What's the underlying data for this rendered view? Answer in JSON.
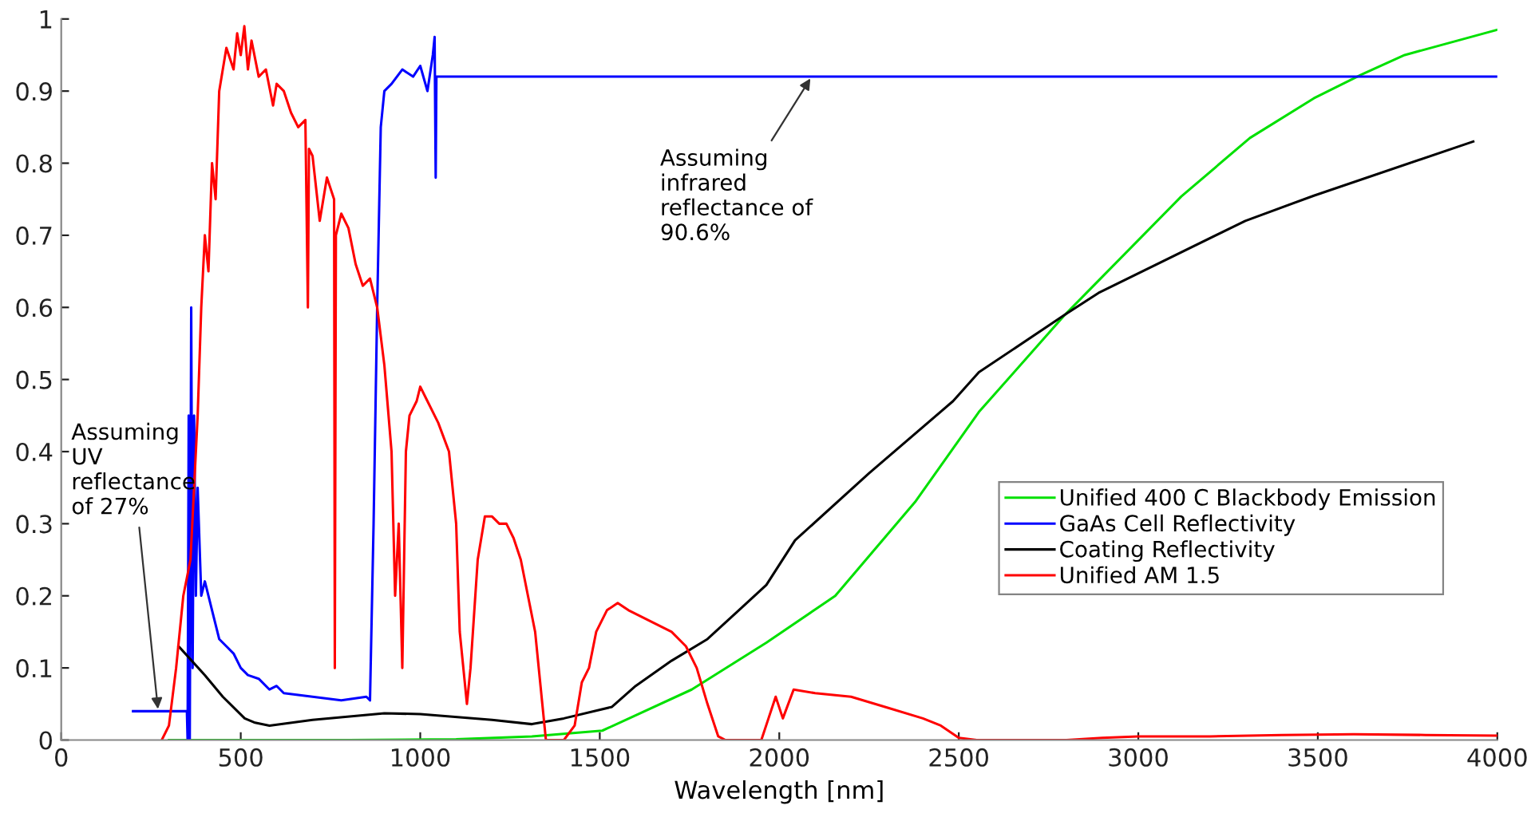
{
  "chart_data": {
    "type": "line",
    "xlabel": "Wavelength [nm]",
    "xlim": [
      0,
      4000
    ],
    "xticks": [
      0,
      500,
      1000,
      1500,
      2000,
      2500,
      3000,
      3500,
      4000
    ],
    "ylim": [
      0,
      1
    ],
    "yticks": [
      0,
      0.1,
      0.2,
      0.3,
      0.4,
      0.5,
      0.6,
      0.7,
      0.8,
      0.9,
      1
    ],
    "grid": false,
    "legend": "right",
    "marker": "none",
    "line_style": "solid",
    "annotations": [
      {
        "text": "Assuming\ninfrared\nreflectance of\n90.6%",
        "x": 2090,
        "y": 0.92
      },
      {
        "text": "Assuming\nUV\nreflectance\nof 27%",
        "x": 270,
        "y": 0.04
      }
    ],
    "series": [
      {
        "name": "Unified 400 C Blackbody Emission",
        "color": "#00e000",
        "x": [
          300,
          800,
          1100,
          1311,
          1507,
          1756,
          1964,
          2156,
          2378,
          2556,
          2796,
          3120,
          3311,
          3489,
          3622,
          3742,
          4000
        ],
        "values": [
          0,
          0,
          0.001,
          0.005,
          0.013,
          0.07,
          0.135,
          0.2,
          0.33,
          0.455,
          0.59,
          0.754,
          0.835,
          0.89,
          0.923,
          0.95,
          0.985
        ]
      },
      {
        "name": "GaAs Cell Reflectivity",
        "color": "#0000ff",
        "x": [
          200,
          350,
          352,
          355,
          358,
          362,
          366,
          370,
          375,
          380,
          390,
          400,
          420,
          440,
          460,
          480,
          500,
          520,
          550,
          580,
          600,
          620,
          700,
          780,
          850,
          860,
          870,
          880,
          890,
          900,
          920,
          950,
          980,
          1000,
          1020,
          1035,
          1040,
          1043,
          1045,
          4000
        ],
        "values": [
          0.04,
          0.04,
          0,
          0.45,
          0,
          0.6,
          0.1,
          0.45,
          0.2,
          0.35,
          0.2,
          0.22,
          0.18,
          0.14,
          0.13,
          0.12,
          0.1,
          0.09,
          0.085,
          0.07,
          0.075,
          0.065,
          0.06,
          0.055,
          0.06,
          0.055,
          0.3,
          0.6,
          0.85,
          0.9,
          0.91,
          0.93,
          0.92,
          0.935,
          0.9,
          0.95,
          0.975,
          0.78,
          0.92,
          0.92
        ]
      },
      {
        "name": "Coating Reflectivity",
        "color": "#000000",
        "x": [
          327,
          400,
          450,
          511,
          540,
          580,
          700,
          900,
          1000,
          1200,
          1311,
          1400,
          1534,
          1600,
          1700,
          1800,
          1964,
          2044,
          2250,
          2484,
          2556,
          2796,
          2889,
          3298,
          3489,
          3933
        ],
        "values": [
          0.13,
          0.09,
          0.06,
          0.03,
          0.024,
          0.02,
          0.028,
          0.037,
          0.036,
          0.028,
          0.022,
          0.03,
          0.046,
          0.075,
          0.11,
          0.14,
          0.215,
          0.277,
          0.37,
          0.47,
          0.51,
          0.59,
          0.62,
          0.72,
          0.755,
          0.83
        ]
      },
      {
        "name": "Unified AM 1.5",
        "color": "#ff0000",
        "x": [
          280,
          300,
          320,
          340,
          360,
          370,
          380,
          390,
          400,
          410,
          420,
          430,
          440,
          450,
          460,
          480,
          490,
          500,
          510,
          520,
          530,
          550,
          570,
          590,
          600,
          620,
          640,
          660,
          680,
          687,
          690,
          700,
          720,
          740,
          760,
          762,
          765,
          780,
          800,
          820,
          840,
          860,
          880,
          900,
          920,
          930,
          940,
          950,
          960,
          970,
          990,
          1000,
          1020,
          1050,
          1080,
          1100,
          1110,
          1130,
          1140,
          1160,
          1180,
          1200,
          1220,
          1240,
          1260,
          1280,
          1300,
          1320,
          1340,
          1350,
          1400,
          1430,
          1450,
          1470,
          1490,
          1520,
          1550,
          1580,
          1620,
          1660,
          1700,
          1740,
          1770,
          1800,
          1830,
          1850,
          1950,
          1970,
          1990,
          2010,
          2040,
          2100,
          2200,
          2300,
          2400,
          2450,
          2500,
          2550,
          2800,
          2900,
          3000,
          3200,
          3400,
          3600,
          3800,
          4000
        ],
        "values": [
          0,
          0.02,
          0.1,
          0.2,
          0.25,
          0.35,
          0.45,
          0.6,
          0.7,
          0.65,
          0.8,
          0.75,
          0.9,
          0.93,
          0.96,
          0.93,
          0.98,
          0.95,
          0.99,
          0.93,
          0.97,
          0.92,
          0.93,
          0.88,
          0.91,
          0.9,
          0.87,
          0.85,
          0.86,
          0.6,
          0.82,
          0.81,
          0.72,
          0.78,
          0.75,
          0.1,
          0.7,
          0.73,
          0.71,
          0.66,
          0.63,
          0.64,
          0.6,
          0.52,
          0.4,
          0.2,
          0.3,
          0.1,
          0.4,
          0.45,
          0.47,
          0.49,
          0.47,
          0.44,
          0.4,
          0.3,
          0.15,
          0.05,
          0.1,
          0.25,
          0.31,
          0.31,
          0.3,
          0.3,
          0.28,
          0.25,
          0.2,
          0.15,
          0.05,
          0,
          0,
          0.02,
          0.08,
          0.1,
          0.15,
          0.18,
          0.19,
          0.18,
          0.17,
          0.16,
          0.15,
          0.13,
          0.1,
          0.05,
          0.005,
          0,
          0,
          0.03,
          0.06,
          0.03,
          0.07,
          0.065,
          0.06,
          0.045,
          0.03,
          0.02,
          0.003,
          0,
          0,
          0.003,
          0.005,
          0.005,
          0.007,
          0.008,
          0.007,
          0.006
        ]
      }
    ]
  }
}
